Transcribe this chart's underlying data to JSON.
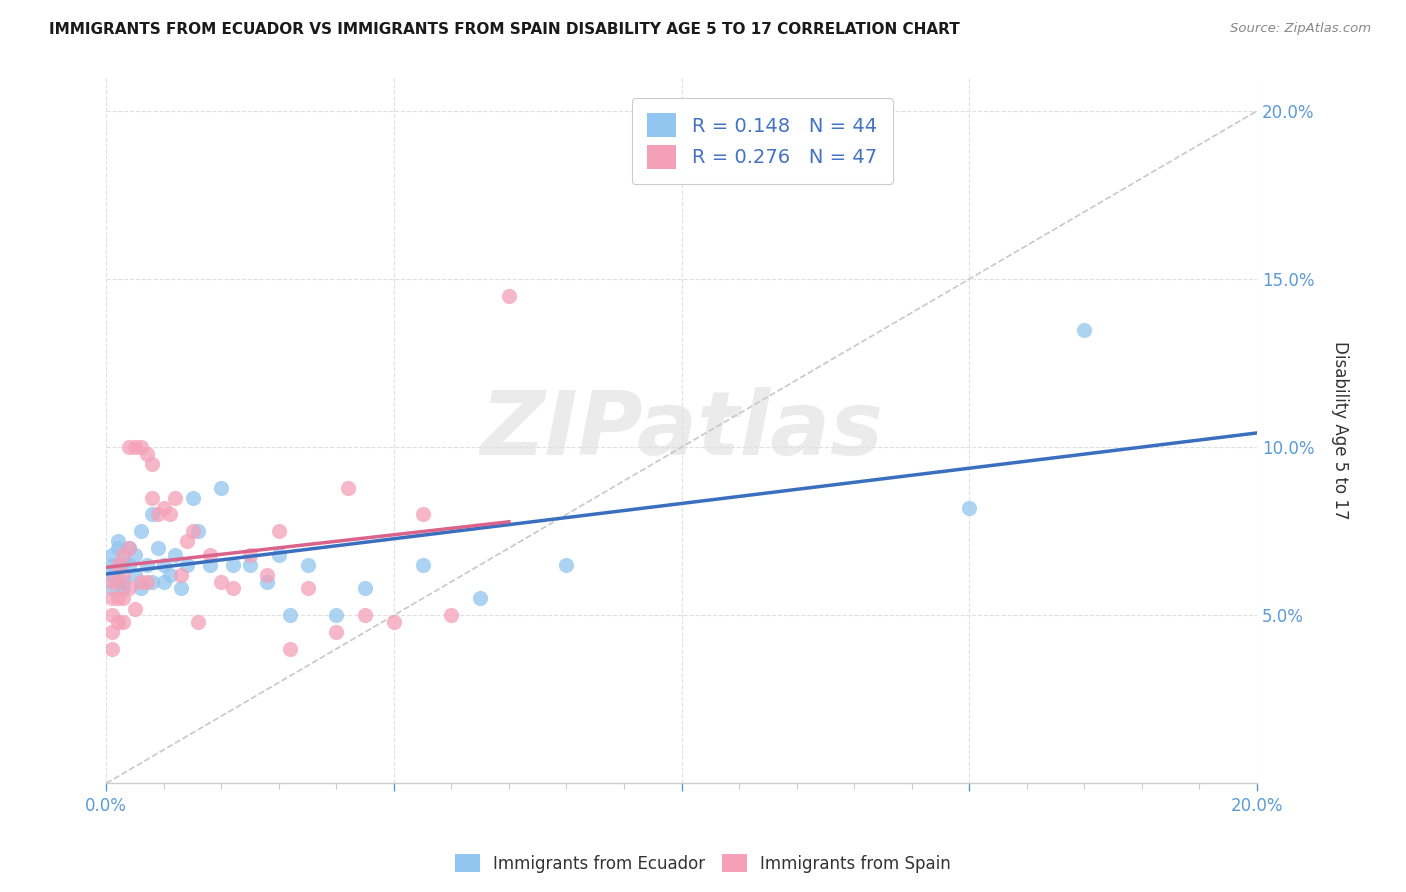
{
  "title": "IMMIGRANTS FROM ECUADOR VS IMMIGRANTS FROM SPAIN DISABILITY AGE 5 TO 17 CORRELATION CHART",
  "source": "Source: ZipAtlas.com",
  "ylabel": "Disability Age 5 to 17",
  "xlim": [
    0.0,
    0.2
  ],
  "ylim": [
    0.0,
    0.21
  ],
  "x_ticks": [
    0.0,
    0.05,
    0.1,
    0.15,
    0.2
  ],
  "x_tick_labels": [
    "0.0%",
    "",
    "",
    "",
    "20.0%"
  ],
  "y_ticks": [
    0.05,
    0.1,
    0.15,
    0.2
  ],
  "y_tick_labels": [
    "5.0%",
    "10.0%",
    "15.0%",
    "20.0%"
  ],
  "r_ecuador": 0.148,
  "n_ecuador": 44,
  "r_spain": 0.276,
  "n_spain": 47,
  "color_ecuador": "#92C5F0",
  "color_spain": "#F4A0B8",
  "color_trendline_ecuador": "#3A6FBF",
  "color_trendline_spain": "#D9638A",
  "color_diagonal": "#C8C8C8",
  "ecuador_x": [
    0.001,
    0.001,
    0.001,
    0.001,
    0.002,
    0.002,
    0.002,
    0.002,
    0.003,
    0.003,
    0.003,
    0.004,
    0.004,
    0.005,
    0.005,
    0.006,
    0.006,
    0.007,
    0.008,
    0.008,
    0.009,
    0.01,
    0.01,
    0.011,
    0.012,
    0.013,
    0.014,
    0.015,
    0.016,
    0.018,
    0.02,
    0.022,
    0.025,
    0.028,
    0.03,
    0.032,
    0.035,
    0.04,
    0.045,
    0.055,
    0.065,
    0.08,
    0.15,
    0.17
  ],
  "ecuador_y": [
    0.065,
    0.068,
    0.062,
    0.058,
    0.07,
    0.064,
    0.06,
    0.072,
    0.066,
    0.06,
    0.058,
    0.065,
    0.07,
    0.068,
    0.062,
    0.075,
    0.058,
    0.065,
    0.08,
    0.06,
    0.07,
    0.065,
    0.06,
    0.062,
    0.068,
    0.058,
    0.065,
    0.085,
    0.075,
    0.065,
    0.088,
    0.065,
    0.065,
    0.06,
    0.068,
    0.05,
    0.065,
    0.05,
    0.058,
    0.065,
    0.055,
    0.065,
    0.082,
    0.135
  ],
  "spain_x": [
    0.001,
    0.001,
    0.001,
    0.001,
    0.001,
    0.002,
    0.002,
    0.002,
    0.002,
    0.003,
    0.003,
    0.003,
    0.003,
    0.004,
    0.004,
    0.004,
    0.005,
    0.005,
    0.006,
    0.006,
    0.007,
    0.007,
    0.008,
    0.008,
    0.009,
    0.01,
    0.011,
    0.012,
    0.013,
    0.014,
    0.015,
    0.016,
    0.018,
    0.02,
    0.022,
    0.025,
    0.028,
    0.03,
    0.032,
    0.035,
    0.04,
    0.042,
    0.045,
    0.05,
    0.055,
    0.06,
    0.07
  ],
  "spain_y": [
    0.06,
    0.055,
    0.05,
    0.045,
    0.04,
    0.065,
    0.06,
    0.055,
    0.048,
    0.068,
    0.062,
    0.055,
    0.048,
    0.07,
    0.058,
    0.1,
    0.1,
    0.052,
    0.1,
    0.06,
    0.098,
    0.06,
    0.085,
    0.095,
    0.08,
    0.082,
    0.08,
    0.085,
    0.062,
    0.072,
    0.075,
    0.048,
    0.068,
    0.06,
    0.058,
    0.068,
    0.062,
    0.075,
    0.04,
    0.058,
    0.045,
    0.088,
    0.05,
    0.048,
    0.08,
    0.05,
    0.145
  ],
  "watermark": "ZIPatlas"
}
